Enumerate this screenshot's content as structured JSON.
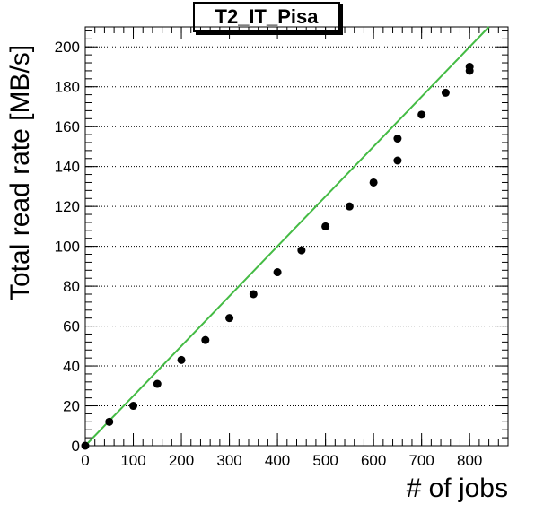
{
  "chart_data": {
    "type": "scatter",
    "title": "T2_IT_Pisa",
    "xlabel": "# of jobs",
    "ylabel": "Total read rate [MB/s]",
    "xlim": [
      0,
      880
    ],
    "ylim": [
      0,
      210
    ],
    "x_ticks": [
      "0",
      "100",
      "200",
      "300",
      "400",
      "500",
      "600",
      "700",
      "800"
    ],
    "y_ticks": [
      "0",
      "20",
      "40",
      "60",
      "80",
      "100",
      "120",
      "140",
      "160",
      "180",
      "200"
    ],
    "grid": "horizontal dotted",
    "series": [
      {
        "marker": "circle",
        "color": "#000000",
        "points": [
          {
            "x": 0,
            "y": 0
          },
          {
            "x": 50,
            "y": 12
          },
          {
            "x": 100,
            "y": 20
          },
          {
            "x": 150,
            "y": 31
          },
          {
            "x": 200,
            "y": 43
          },
          {
            "x": 250,
            "y": 53
          },
          {
            "x": 300,
            "y": 64
          },
          {
            "x": 350,
            "y": 76
          },
          {
            "x": 400,
            "y": 87
          },
          {
            "x": 450,
            "y": 98
          },
          {
            "x": 500,
            "y": 110
          },
          {
            "x": 550,
            "y": 120
          },
          {
            "x": 600,
            "y": 132
          },
          {
            "x": 650,
            "y": 143
          },
          {
            "x": 650,
            "y": 154
          },
          {
            "x": 700,
            "y": 166
          },
          {
            "x": 750,
            "y": 177
          },
          {
            "x": 800,
            "y": 188
          },
          {
            "x": 800,
            "y": 190
          }
        ]
      }
    ],
    "reference_line": {
      "color": "#44bb44",
      "x": [
        0,
        840
      ],
      "y": [
        0,
        210
      ]
    }
  }
}
